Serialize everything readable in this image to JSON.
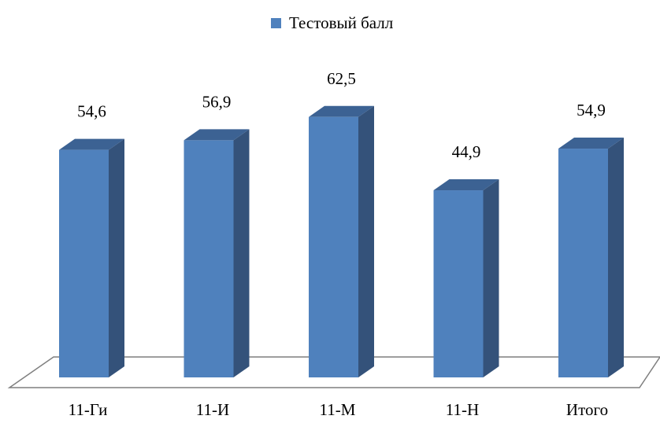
{
  "chart_data": {
    "type": "bar",
    "categories": [
      "11-Ги",
      "11-И",
      "11-М",
      "11-Н",
      "Итого"
    ],
    "series": [
      {
        "name": "Тестовый балл",
        "values": [
          54.6,
          56.9,
          62.5,
          44.9,
          54.9
        ],
        "labels": [
          "54,6",
          "56,9",
          "62,5",
          "44,9",
          "54,9"
        ]
      }
    ],
    "title": "",
    "xlabel": "",
    "ylabel": "",
    "ylim": [
      0,
      70
    ],
    "grid": false,
    "legend_position": "top-center",
    "style": "3d-column"
  },
  "colors": {
    "bar_front": "#4f81bd",
    "bar_side": "#34527a",
    "bar_top": "#3c6293",
    "floor_stroke": "#7f7f7f",
    "text": "#000000"
  }
}
